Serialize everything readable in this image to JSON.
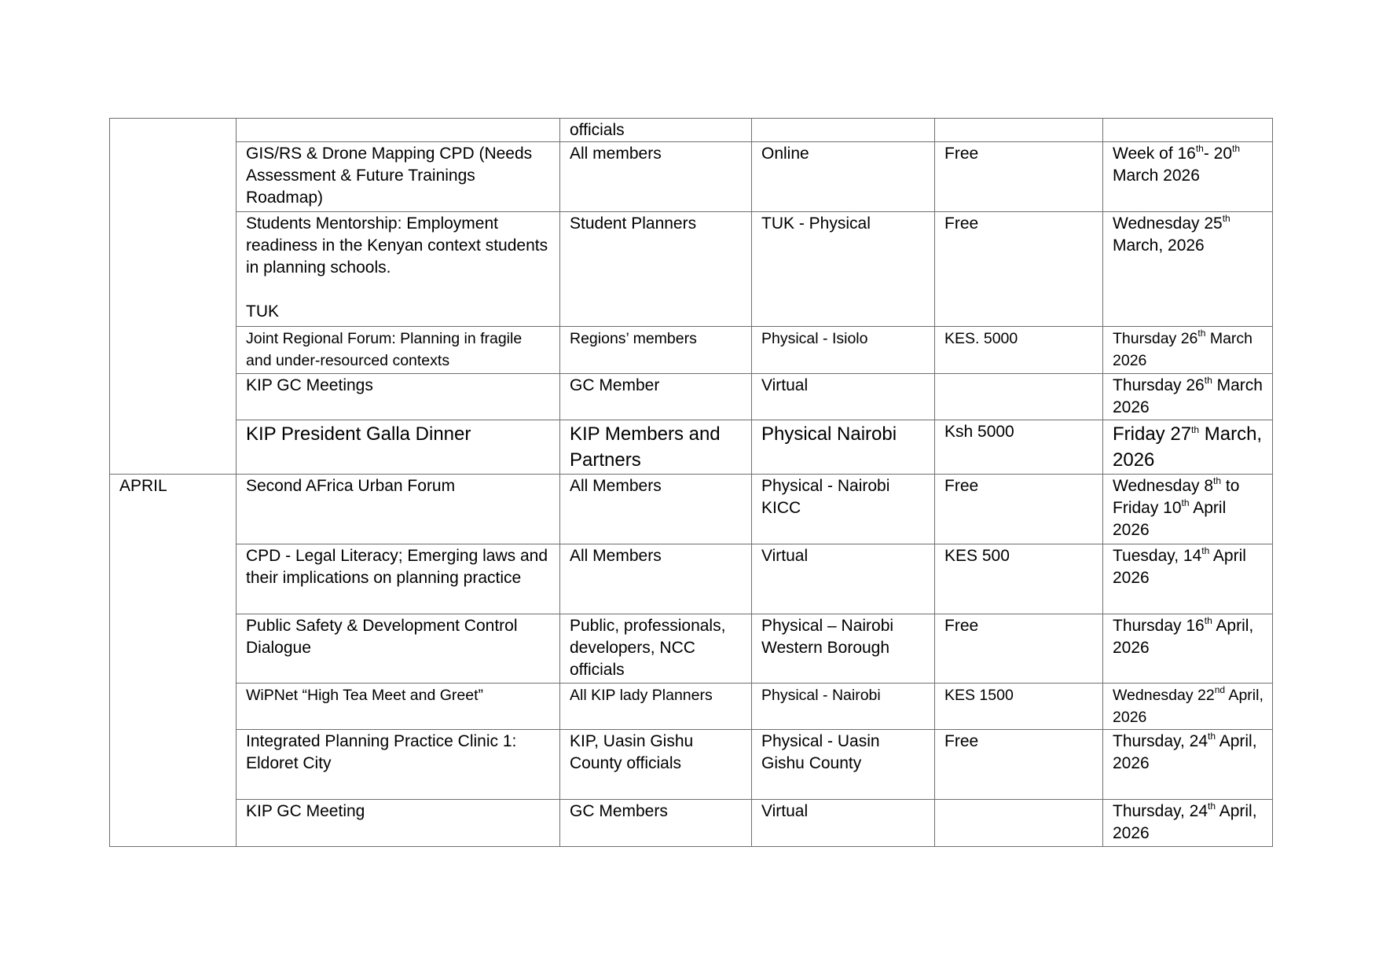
{
  "table": {
    "groups": [
      {
        "month": "",
        "rows": [
          {
            "event": [
              ""
            ],
            "audience": "officials",
            "venue": "",
            "fee": "",
            "date": [
              ""
            ]
          },
          {
            "event": [
              "GIS/RS & Drone Mapping CPD (Needs Assessment & Future Trainings Roadmap)"
            ],
            "audience": "All members",
            "venue": "Online",
            "fee": "Free",
            "date": [
              "Week of 16",
              {
                "sup": "th"
              },
              "- 20",
              {
                "sup": "th"
              },
              " March 2026"
            ]
          },
          {
            "event": [
              "Students Mentorship: Employment readiness in the Kenyan context students in planning schools.",
              "",
              "TUK"
            ],
            "audience": "Student Planners",
            "venue": "TUK -  Physical",
            "fee": "Free",
            "date": [
              "Wednesday 25",
              {
                "sup": "th"
              },
              " March, 2026"
            ]
          },
          {
            "event": [
              "Joint Regional Forum: Planning in fragile and under-resourced contexts"
            ],
            "audience": "Regions’ members",
            "venue": "Physical - Isiolo",
            "fee": "KES. 5000",
            "date": [
              "Thursday  26",
              {
                "sup": "th"
              },
              " March 2026"
            ]
          },
          {
            "event": [
              "KIP GC Meetings"
            ],
            "audience": "GC Member",
            "venue": "Virtual",
            "fee": "",
            "date": [
              "Thursday 26",
              {
                "sup": "th"
              },
              " March 2026"
            ]
          },
          {
            "event": [
              "KIP President Galla Dinner"
            ],
            "audience": "KIP Members and Partners",
            "venue": "Physical Nairobi",
            "fee": "Ksh 5000",
            "date": [
              "Friday 27",
              {
                "sup": "th"
              },
              " March, 2026"
            ]
          }
        ]
      },
      {
        "month": "APRIL",
        "rows": [
          {
            "event": [
              "Second AFrica Urban Forum"
            ],
            "audience": "All Members",
            "venue": "Physical - Nairobi KICC",
            "fee": "Free",
            "date": [
              "Wednesday 8",
              {
                "sup": "th"
              },
              " to Friday 10",
              {
                "sup": "th"
              },
              " April 2026"
            ]
          },
          {
            "event": [
              "CPD - Legal Literacy; Emerging laws and their implications on planning practice"
            ],
            "audience": "All Members",
            "venue": "Virtual",
            "fee": "KES 500",
            "date": [
              "Tuesday, 14",
              {
                "sup": "th"
              },
              " April 2026"
            ]
          },
          {
            "event": [
              "Public Safety & Development Control Dialogue"
            ],
            "audience": "Public, professionals, developers, NCC officials",
            "venue": "Physical – Nairobi Western Borough",
            "fee": "Free",
            "date": [
              "Thursday 16",
              {
                "sup": "th"
              },
              " April, 2026"
            ]
          },
          {
            "event": [
              "WiPNet “High Tea Meet and Greet”"
            ],
            "audience": "All KIP lady Planners",
            "venue": "Physical - Nairobi",
            "fee": "KES 1500",
            "date": [
              "Wednesday 22",
              {
                "sup": "nd"
              },
              " April, 2026"
            ]
          },
          {
            "event": [
              "Integrated Planning Practice Clinic 1: Eldoret City"
            ],
            "audience": "KIP, Uasin Gishu County officials",
            "venue": "Physical - Uasin Gishu County",
            "fee": "Free",
            "date": [
              "Thursday, 24",
              {
                "sup": "th"
              },
              " April, 2026"
            ]
          },
          {
            "event": [
              "KIP GC Meeting"
            ],
            "audience": "GC Members",
            "venue": "Virtual",
            "fee": "",
            "date": [
              "Thursday, 24",
              {
                "sup": "th"
              },
              " April, 2026"
            ]
          }
        ]
      }
    ]
  }
}
